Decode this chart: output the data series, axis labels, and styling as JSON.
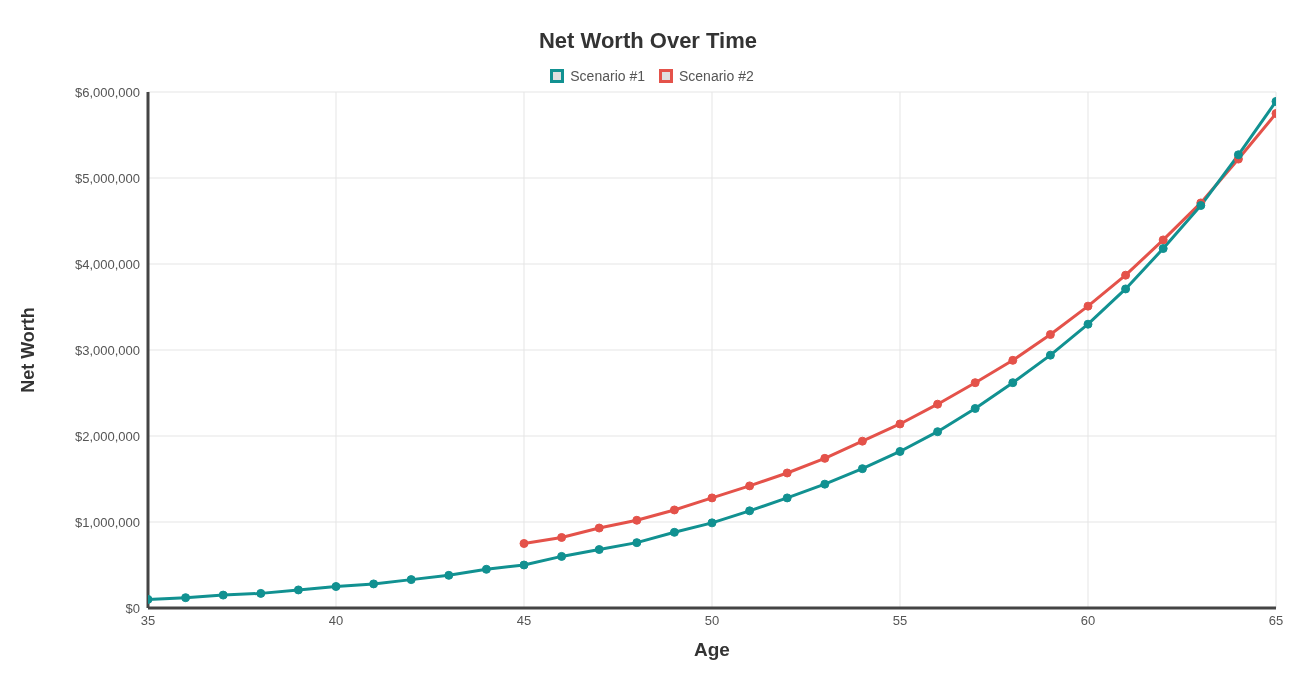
{
  "chart_data": {
    "type": "line",
    "title": "Net Worth Over Time",
    "xlabel": "Age",
    "ylabel": "Net Worth",
    "x": [
      35,
      36,
      37,
      38,
      39,
      40,
      41,
      42,
      43,
      44,
      45,
      46,
      47,
      48,
      49,
      50,
      51,
      52,
      53,
      54,
      55,
      56,
      57,
      58,
      59,
      60,
      61,
      62,
      63,
      64,
      65
    ],
    "series": [
      {
        "name": "Scenario #1",
        "color": "#119191",
        "values": [
          100000,
          120000,
          150000,
          170000,
          210000,
          250000,
          280000,
          330000,
          380000,
          450000,
          500000,
          600000,
          680000,
          760000,
          880000,
          990000,
          1130000,
          1280000,
          1440000,
          1620000,
          1820000,
          2050000,
          2320000,
          2620000,
          2940000,
          3300000,
          3710000,
          4180000,
          4680000,
          5270000,
          5890000
        ]
      },
      {
        "name": "Scenario #2",
        "color": "#e4524a",
        "values": [
          null,
          null,
          null,
          null,
          null,
          null,
          null,
          null,
          null,
          null,
          750000,
          820000,
          930000,
          1020000,
          1140000,
          1280000,
          1420000,
          1570000,
          1740000,
          1940000,
          2140000,
          2370000,
          2620000,
          2880000,
          3180000,
          3510000,
          3870000,
          4280000,
          4710000,
          5220000,
          5750000
        ]
      }
    ],
    "xlim": [
      35,
      65
    ],
    "xticks": [
      35,
      40,
      45,
      50,
      55,
      60,
      65
    ],
    "ylim": [
      0,
      6000000
    ],
    "yticks": [
      {
        "value": 0,
        "label": "$0"
      },
      {
        "value": 1000000,
        "label": "$1,000,000"
      },
      {
        "value": 2000000,
        "label": "$2,000,000"
      },
      {
        "value": 3000000,
        "label": "$3,000,000"
      },
      {
        "value": 4000000,
        "label": "$4,000,000"
      },
      {
        "value": 5000000,
        "label": "$5,000,000"
      },
      {
        "value": 6000000,
        "label": "$6,000,000"
      }
    ],
    "grid": true,
    "legend": "top",
    "marker": "circle",
    "line_style": "solid"
  }
}
